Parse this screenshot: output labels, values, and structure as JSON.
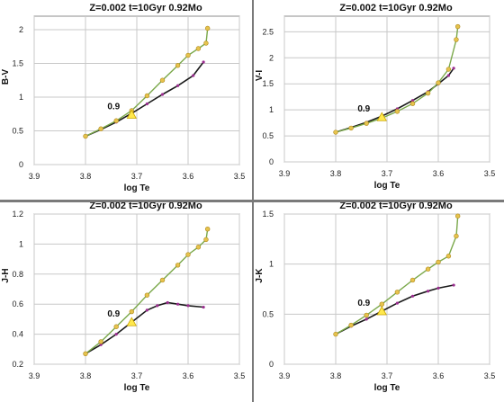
{
  "colors": {
    "grid": "#c8c8c8",
    "frame": "#8c8c8c",
    "obs_line": "#1a1a1a",
    "obs_marker": "#9b2d8f",
    "model_line": "#7aa84a",
    "model_marker": "#e6c34d",
    "highlight": "#ffe84d"
  },
  "chart_data": [
    {
      "type": "line",
      "title": "Z=0.002  t=10Gyr 0.92Mo",
      "xlabel": "log Te",
      "ylabel": "B-V",
      "xlim": [
        3.9,
        3.5
      ],
      "ylim": [
        0,
        2.2
      ],
      "xticks": [
        "3.9",
        "3.8",
        "3.7",
        "3.6",
        "3.5"
      ],
      "yticks": [
        "0",
        "0.5",
        "1",
        "1.5",
        "2"
      ],
      "annotation": {
        "text": "0.9",
        "x": 3.71,
        "y": 0.74
      },
      "series": [
        {
          "kind": "observed",
          "x": [
            3.8,
            3.77,
            3.74,
            3.71,
            3.68,
            3.65,
            3.62,
            3.59,
            3.57
          ],
          "y": [
            0.42,
            0.52,
            0.63,
            0.76,
            0.9,
            1.04,
            1.17,
            1.32,
            1.52
          ]
        },
        {
          "kind": "model",
          "x": [
            3.8,
            3.77,
            3.74,
            3.71,
            3.68,
            3.65,
            3.62,
            3.6,
            3.58,
            3.565,
            3.562
          ],
          "y": [
            0.42,
            0.53,
            0.65,
            0.8,
            1.02,
            1.25,
            1.47,
            1.62,
            1.72,
            1.8,
            2.02
          ]
        }
      ]
    },
    {
      "type": "line",
      "title": "Z=0.002  t=10Gyr 0.92Mo",
      "xlabel": "log Te",
      "ylabel": "V-I",
      "xlim": [
        3.9,
        3.5
      ],
      "ylim": [
        0,
        2.8
      ],
      "xticks": [
        "3.9",
        "3.8",
        "3.7",
        "3.6",
        "3.5"
      ],
      "yticks": [
        "0",
        "0.5",
        "1",
        "1.5",
        "2",
        "2.5"
      ],
      "annotation": {
        "text": "0.9",
        "x": 3.71,
        "y": 0.86
      },
      "series": [
        {
          "kind": "observed",
          "x": [
            3.8,
            3.77,
            3.74,
            3.71,
            3.68,
            3.65,
            3.62,
            3.6,
            3.58,
            3.57
          ],
          "y": [
            0.57,
            0.66,
            0.76,
            0.88,
            1.02,
            1.18,
            1.35,
            1.5,
            1.66,
            1.8
          ]
        },
        {
          "kind": "model",
          "x": [
            3.8,
            3.77,
            3.74,
            3.71,
            3.68,
            3.65,
            3.62,
            3.6,
            3.58,
            3.565,
            3.562
          ],
          "y": [
            0.57,
            0.65,
            0.74,
            0.84,
            0.97,
            1.12,
            1.32,
            1.52,
            1.78,
            2.35,
            2.6
          ]
        }
      ]
    },
    {
      "type": "line",
      "title": "Z=0.002  t=10Gyr 0.92Mo",
      "xlabel": "log Te",
      "ylabel": "J-H",
      "xlim": [
        3.9,
        3.5
      ],
      "ylim": [
        0.2,
        1.2
      ],
      "xticks": [
        "3.9",
        "3.8",
        "3.7",
        "3.6",
        "3.5"
      ],
      "yticks": [
        "0.2",
        "0.4",
        "0.6",
        "0.8",
        "1",
        "1.2"
      ],
      "annotation": {
        "text": "0.9",
        "x": 3.71,
        "y": 0.48
      },
      "series": [
        {
          "kind": "observed",
          "x": [
            3.8,
            3.77,
            3.74,
            3.71,
            3.68,
            3.66,
            3.64,
            3.62,
            3.6,
            3.57
          ],
          "y": [
            0.27,
            0.33,
            0.4,
            0.48,
            0.56,
            0.59,
            0.61,
            0.6,
            0.59,
            0.58
          ]
        },
        {
          "kind": "model",
          "x": [
            3.8,
            3.77,
            3.74,
            3.71,
            3.68,
            3.65,
            3.62,
            3.6,
            3.58,
            3.565,
            3.562
          ],
          "y": [
            0.27,
            0.35,
            0.45,
            0.55,
            0.66,
            0.76,
            0.86,
            0.93,
            0.98,
            1.03,
            1.1
          ]
        }
      ]
    },
    {
      "type": "line",
      "title": "Z=0.002  t=10Gyr 0.92Mo",
      "xlabel": "log Te",
      "ylabel": "J-K",
      "xlim": [
        3.9,
        3.5
      ],
      "ylim": [
        0,
        1.5
      ],
      "xticks": [
        "3.9",
        "3.8",
        "3.7",
        "3.6",
        "3.5"
      ],
      "yticks": [
        "0",
        "0.5",
        "1",
        "1.5"
      ],
      "annotation": {
        "text": "0.9",
        "x": 3.71,
        "y": 0.53
      },
      "series": [
        {
          "kind": "observed",
          "x": [
            3.8,
            3.77,
            3.74,
            3.71,
            3.68,
            3.65,
            3.62,
            3.6,
            3.57
          ],
          "y": [
            0.3,
            0.38,
            0.45,
            0.53,
            0.61,
            0.68,
            0.73,
            0.76,
            0.79
          ]
        },
        {
          "kind": "model",
          "x": [
            3.8,
            3.77,
            3.74,
            3.71,
            3.68,
            3.65,
            3.62,
            3.6,
            3.58,
            3.565,
            3.562
          ],
          "y": [
            0.3,
            0.39,
            0.49,
            0.6,
            0.72,
            0.84,
            0.95,
            1.02,
            1.08,
            1.28,
            1.48
          ]
        }
      ]
    }
  ]
}
